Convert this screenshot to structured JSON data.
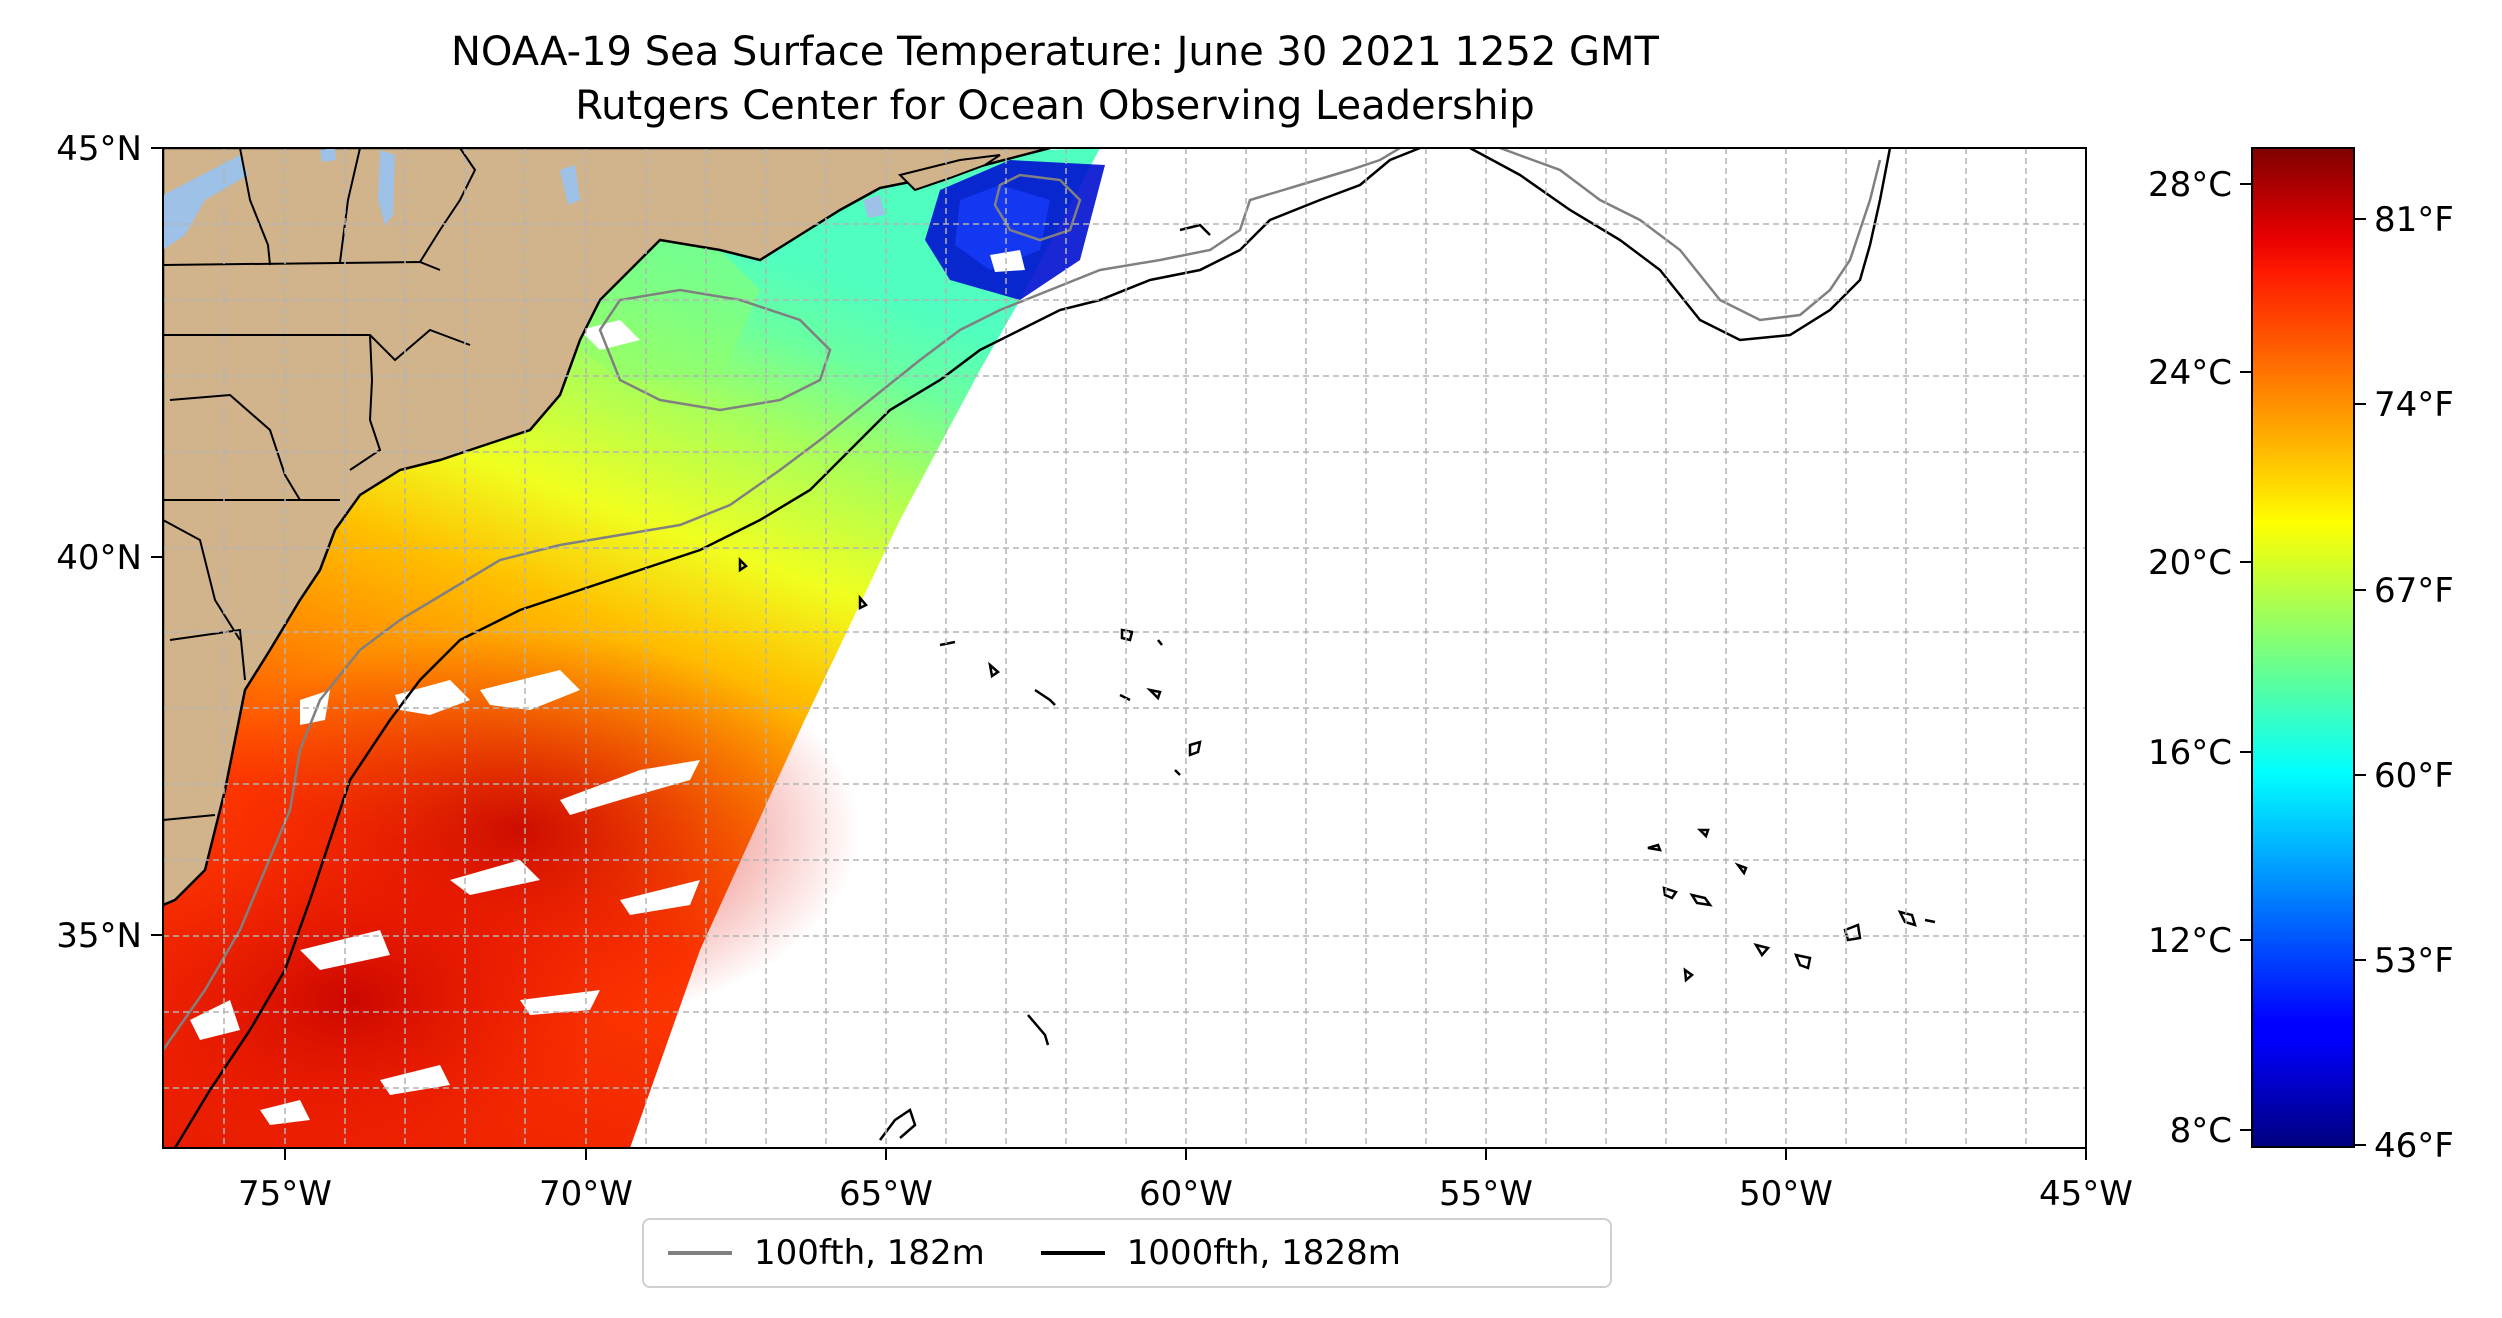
{
  "title": {
    "line1": "NOAA-19 Sea Surface Temperature: June 30 2021 1252 GMT",
    "line2": "Rutgers Center for Ocean Observing Leadership"
  },
  "map": {
    "lon_range": [
      -77,
      -45
    ],
    "lat_range": [
      32.5,
      45
    ],
    "x_ticks": [
      {
        "value": -75,
        "label": "75°W"
      },
      {
        "value": -70,
        "label": "70°W"
      },
      {
        "value": -65,
        "label": "65°W"
      },
      {
        "value": -60,
        "label": "60°W"
      },
      {
        "value": -55,
        "label": "55°W"
      },
      {
        "value": -50,
        "label": "50°W"
      },
      {
        "value": -45,
        "label": "45°W"
      }
    ],
    "y_ticks": [
      {
        "value": 45,
        "label": "45°N"
      },
      {
        "value": 40,
        "label": "40°N"
      },
      {
        "value": 35,
        "label": "35°N"
      }
    ],
    "grid": true,
    "colors": {
      "land": "#d2b48c",
      "lakes": "#9ec1e8",
      "isobath_100": "#808080",
      "isobath_1000": "#000000"
    }
  },
  "colorbar": {
    "colormap": "jet",
    "celsius_range": [
      7.5,
      28.8
    ],
    "celsius_ticks": [
      {
        "value": 8,
        "label": "8°C"
      },
      {
        "value": 12,
        "label": "12°C"
      },
      {
        "value": 16,
        "label": "16°C"
      },
      {
        "value": 20,
        "label": "20°C"
      },
      {
        "value": 24,
        "label": "24°C"
      },
      {
        "value": 28,
        "label": "28°C"
      }
    ],
    "fahrenheit_ticks": [
      {
        "value": 46,
        "label": "46°F"
      },
      {
        "value": 53,
        "label": "53°F"
      },
      {
        "value": 60,
        "label": "60°F"
      },
      {
        "value": 67,
        "label": "67°F"
      },
      {
        "value": 74,
        "label": "74°F"
      },
      {
        "value": 81,
        "label": "81°F"
      }
    ]
  },
  "legend": {
    "position": "bottom-center",
    "items": [
      {
        "label": "100fth, 182m",
        "color": "#808080"
      },
      {
        "label": "1000fth, 1828m",
        "color": "#000000"
      }
    ]
  }
}
